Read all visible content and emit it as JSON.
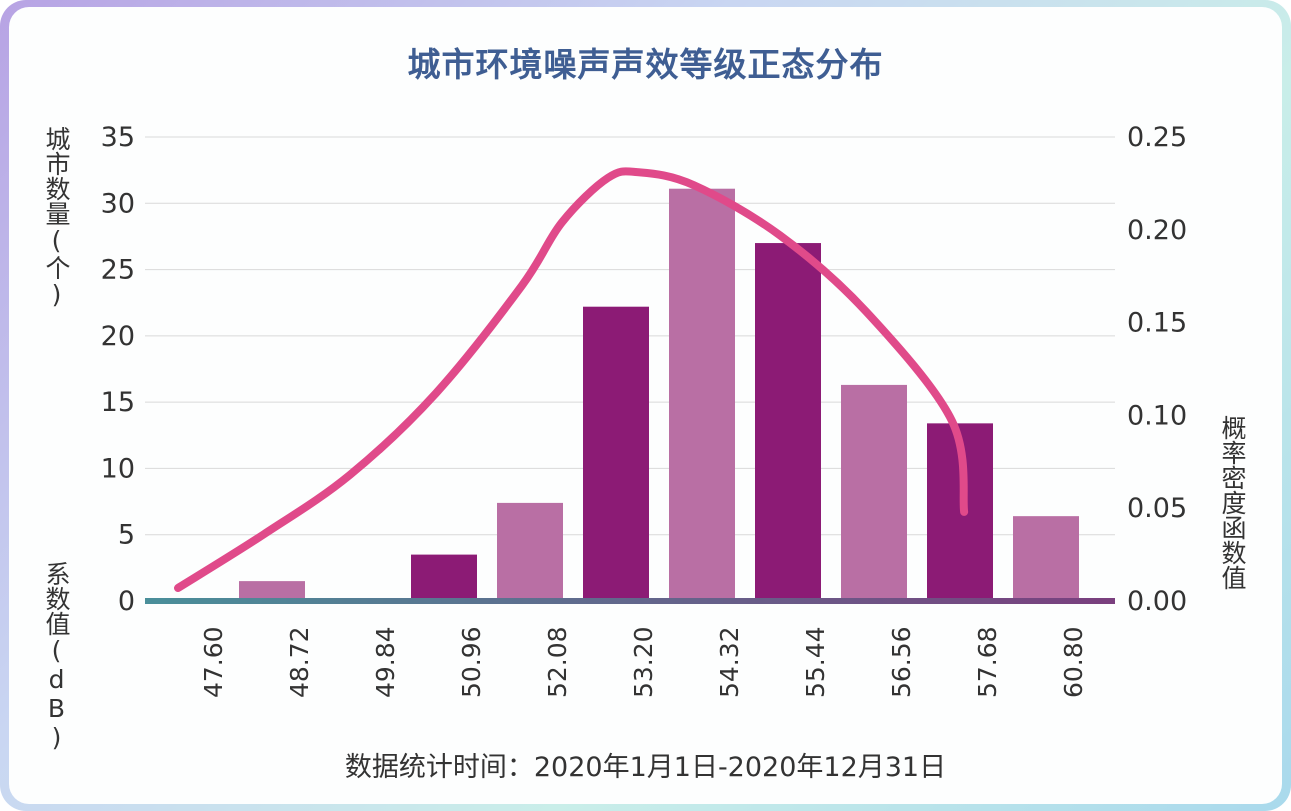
{
  "title": "城市环境噪声声效等级正态分布",
  "left_axis_label_top": "城市数量(个)",
  "left_axis_label_bottom": "系数值(dB)",
  "right_axis_label": "概率密度函数值",
  "footer": "数据统计时间：2020年1月1日-2020年12月31日",
  "colors": {
    "bar_dark": "#8c1b75",
    "bar_light": "#b96fa4",
    "curve": "#e04a8a",
    "title": "#3f5e93",
    "axis_start": "#4a8f9a",
    "axis_end": "#7a3f7e",
    "grid": "#d9d9d9"
  },
  "chart_data": {
    "type": "bar",
    "title": "城市环境噪声声效等级正态分布",
    "x_tick_labels": [
      "47.60",
      "48.72",
      "49.84",
      "50.96",
      "52.08",
      "53.20",
      "54.32",
      "55.44",
      "56.56",
      "57.68",
      "60.80"
    ],
    "series": [
      {
        "type": "bar",
        "axis": "left",
        "values": [
          1.5,
          0,
          3.5,
          7.4,
          22.2,
          31.1,
          27.0,
          16.3,
          13.4,
          6.4
        ]
      },
      {
        "type": "line",
        "axis": "right",
        "x": [
          47.6,
          48.72,
          49.84,
          50.96,
          52.08,
          52.6,
          53.2,
          53.6,
          54.32,
          55.44,
          56.56,
          57.68,
          58.12
        ],
        "values": [
          0.007,
          0.036,
          0.068,
          0.112,
          0.17,
          0.204,
          0.228,
          0.231,
          0.224,
          0.197,
          0.156,
          0.097,
          0.048
        ]
      }
    ],
    "left_axis": {
      "min": 0,
      "max": 35,
      "ticks": [
        "0",
        "5",
        "10",
        "15",
        "20",
        "25",
        "30",
        "35"
      ]
    },
    "right_axis": {
      "min": 0,
      "max": 0.25,
      "ticks": [
        "0.00",
        "0.05",
        "0.10",
        "0.15",
        "0.20",
        "0.25"
      ]
    },
    "grid": true
  }
}
